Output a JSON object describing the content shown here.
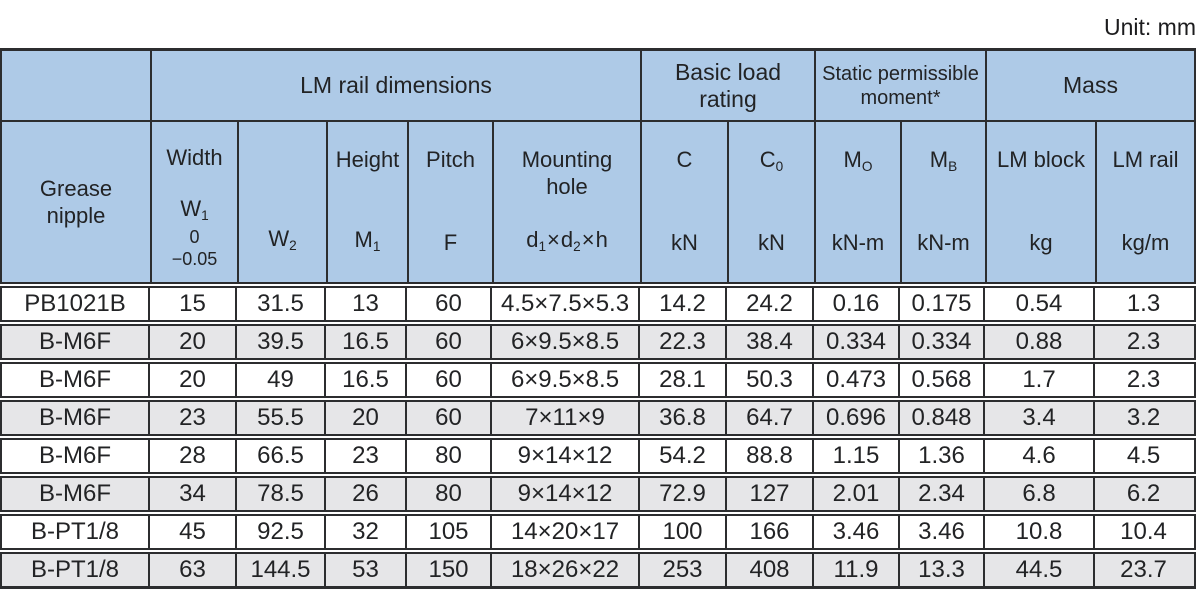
{
  "unit_note": "Unit: mm",
  "table": {
    "groups": {
      "lm_rail_dimensions": "LM rail dimensions",
      "basic_load_rating": "Basic load\nrating",
      "static_permissible_moment": "Static permissible\nmoment*",
      "mass": "Mass"
    },
    "sub": {
      "grease": "Grease\nnipple",
      "width_title": "Width",
      "width_sym_base": "W",
      "width_sym_sub": "1",
      "width_tol_zero": "0",
      "width_tol_dev": "−0.05",
      "w2_base": "W",
      "w2_sub": "2",
      "height_title": "Height",
      "height_sym_base": "M",
      "height_sym_sub": "1",
      "pitch_title": "Pitch",
      "pitch_sym": "F",
      "mount_title": "Mounting\nhole",
      "mount_d1_base": "d",
      "mount_d1_sub": "1",
      "mount_times1": "×",
      "mount_d2_base": "d",
      "mount_d2_sub": "2",
      "mount_times2": "×",
      "mount_h": "h",
      "c_sym": "C",
      "c_unit": "kN",
      "c0_base": "C",
      "c0_sub": "0",
      "c0_unit": "kN",
      "mo_base": "M",
      "mo_sub": "O",
      "mo_unit": "kN-m",
      "mb_base": "M",
      "mb_sub": "B",
      "mb_unit": "kN-m",
      "block_title": "LM block",
      "block_unit": "kg",
      "rail_title": "LM rail",
      "rail_unit": "kg/m"
    },
    "rows": [
      {
        "grease": "PB1021B",
        "w1": "15",
        "w2": "31.5",
        "m1": "13",
        "f": "60",
        "hole": "4.5×7.5×5.3",
        "c": "14.2",
        "c0": "24.2",
        "mo": "0.16",
        "mb": "0.175",
        "block": "0.54",
        "rail": "1.3"
      },
      {
        "grease": "B-M6F",
        "w1": "20",
        "w2": "39.5",
        "m1": "16.5",
        "f": "60",
        "hole": "6×9.5×8.5",
        "c": "22.3",
        "c0": "38.4",
        "mo": "0.334",
        "mb": "0.334",
        "block": "0.88",
        "rail": "2.3"
      },
      {
        "grease": "B-M6F",
        "w1": "20",
        "w2": "49",
        "m1": "16.5",
        "f": "60",
        "hole": "6×9.5×8.5",
        "c": "28.1",
        "c0": "50.3",
        "mo": "0.473",
        "mb": "0.568",
        "block": "1.7",
        "rail": "2.3"
      },
      {
        "grease": "B-M6F",
        "w1": "23",
        "w2": "55.5",
        "m1": "20",
        "f": "60",
        "hole": "7×11×9",
        "c": "36.8",
        "c0": "64.7",
        "mo": "0.696",
        "mb": "0.848",
        "block": "3.4",
        "rail": "3.2"
      },
      {
        "grease": "B-M6F",
        "w1": "28",
        "w2": "66.5",
        "m1": "23",
        "f": "80",
        "hole": "9×14×12",
        "c": "54.2",
        "c0": "88.8",
        "mo": "1.15",
        "mb": "1.36",
        "block": "4.6",
        "rail": "4.5"
      },
      {
        "grease": "B-M6F",
        "w1": "34",
        "w2": "78.5",
        "m1": "26",
        "f": "80",
        "hole": "9×14×12",
        "c": "72.9",
        "c0": "127",
        "mo": "2.01",
        "mb": "2.34",
        "block": "6.8",
        "rail": "6.2"
      },
      {
        "grease": "B-PT1/8",
        "w1": "45",
        "w2": "92.5",
        "m1": "32",
        "f": "105",
        "hole": "14×20×17",
        "c": "100",
        "c0": "166",
        "mo": "3.46",
        "mb": "3.46",
        "block": "10.8",
        "rail": "10.4"
      },
      {
        "grease": "B-PT1/8",
        "w1": "63",
        "w2": "144.5",
        "m1": "53",
        "f": "150",
        "hole": "18×26×22",
        "c": "253",
        "c0": "408",
        "mo": "11.9",
        "mb": "13.3",
        "block": "44.5",
        "rail": "23.7"
      }
    ]
  }
}
